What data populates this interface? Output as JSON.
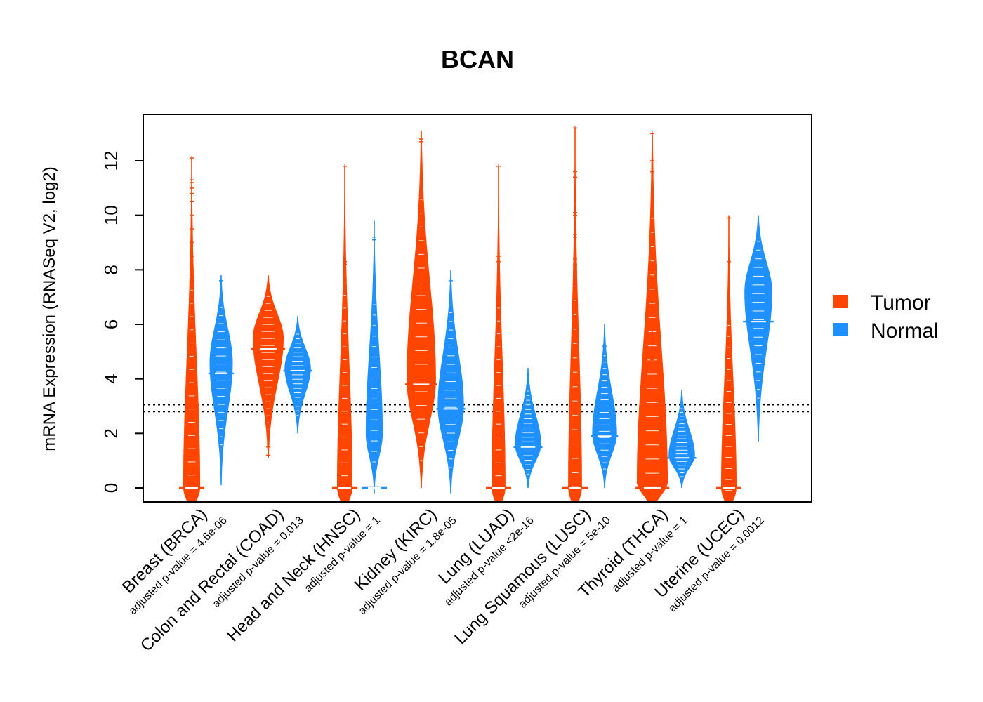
{
  "chart_data": {
    "type": "beanplot",
    "title": "BCAN",
    "ylabel": "mRNA Expression (RNASeq V2, log2)",
    "xlabel": "",
    "ylim": [
      -0.5,
      13.7
    ],
    "yticks": [
      0,
      2,
      4,
      6,
      8,
      10,
      12
    ],
    "ytick_labels": [
      "0",
      "2",
      "4",
      "6",
      "8",
      "10",
      "12"
    ],
    "reference_lines": [
      2.8,
      3.05
    ],
    "legend": {
      "position": "right",
      "entries": [
        {
          "name": "Tumor",
          "color": "#FF4500"
        },
        {
          "name": "Normal",
          "color": "#1E90FF"
        }
      ]
    },
    "series_colors": {
      "Tumor": "#FF4500",
      "Normal": "#1E90FF"
    },
    "categories": [
      {
        "label": "Breast (BRCA)",
        "pvalue_label": "adjusted p-value = 4.6e-06",
        "tumor": {
          "median": 0,
          "min": -0.5,
          "max": 12.1,
          "mode": 0,
          "width": 0.55,
          "outliers": [
            12.1,
            11.3,
            11.2,
            11.0,
            10.8,
            10.5,
            10.0,
            9.5,
            9.0,
            8.5,
            8.0,
            7.5
          ]
        },
        "normal": {
          "median": 4.2,
          "min": 0.1,
          "max": 7.8,
          "mode": 4.6,
          "width": 0.75,
          "outliers": [
            7.6
          ]
        }
      },
      {
        "label": "Colon and Rectal (COAD)",
        "pvalue_label": "adjusted p-value = 0.013",
        "tumor": {
          "median": 5.1,
          "min": 1.1,
          "max": 7.8,
          "mode": 5.5,
          "width": 1.0,
          "outliers": [
            1.2,
            1.5
          ]
        },
        "normal": {
          "median": 4.3,
          "min": 2.0,
          "max": 6.3,
          "mode": 4.4,
          "width": 0.85,
          "outliers": []
        }
      },
      {
        "label": "Head and Neck (HNSC)",
        "pvalue_label": "adjusted p-value = 1",
        "tumor": {
          "median": 0,
          "min": -0.5,
          "max": 11.8,
          "mode": 0,
          "width": 0.5,
          "outliers": [
            11.8,
            8.3,
            8.2
          ]
        },
        "normal": {
          "median": 0,
          "min": -0.2,
          "max": 9.8,
          "mode": 2.0,
          "width": 0.55,
          "outliers": [
            9.2,
            9.1
          ]
        }
      },
      {
        "label": "Kidney (KIRC)",
        "pvalue_label": "adjusted p-value = 1.8e-05",
        "tumor": {
          "median": 3.8,
          "min": 0,
          "max": 13.1,
          "mode": 4.0,
          "width": 0.95,
          "outliers": [
            12.8,
            12.7,
            10.2,
            8.8
          ]
        },
        "normal": {
          "median": 2.9,
          "min": -0.2,
          "max": 8.0,
          "mode": 3.0,
          "width": 0.85,
          "outliers": [
            7.6,
            6.3
          ]
        }
      },
      {
        "label": "Lung (LUAD)",
        "pvalue_label": "adjusted p-value <2e-16",
        "tumor": {
          "median": 0,
          "min": -0.5,
          "max": 11.8,
          "mode": 0,
          "width": 0.45,
          "outliers": [
            11.8,
            8.5,
            8.3
          ]
        },
        "normal": {
          "median": 1.5,
          "min": 0,
          "max": 4.4,
          "mode": 1.6,
          "width": 0.85,
          "outliers": []
        }
      },
      {
        "label": "Lung Squamous (LUSC)",
        "pvalue_label": "adjusted p-value = 5e-10",
        "tumor": {
          "median": 0,
          "min": -0.5,
          "max": 13.2,
          "mode": 0,
          "width": 0.45,
          "outliers": [
            13.2,
            11.6,
            11.4,
            10.1,
            10.0,
            9.3,
            9.2,
            8.4,
            8.2
          ]
        },
        "normal": {
          "median": 1.9,
          "min": 0,
          "max": 6.0,
          "mode": 2.0,
          "width": 0.8,
          "outliers": [
            5.2
          ]
        }
      },
      {
        "label": "Thyroid (THCA)",
        "pvalue_label": "adjusted p-value = 1",
        "tumor": {
          "median": 0,
          "min": -0.5,
          "max": 13.0,
          "mode": 0.2,
          "width": 1.0,
          "outliers": [
            13.0,
            12.0,
            11.6,
            9.8,
            9.0,
            7.2,
            7.0,
            6.4,
            5.7,
            5.3,
            4.7,
            4.3
          ]
        },
        "normal": {
          "median": 1.1,
          "min": 0,
          "max": 3.6,
          "mode": 1.2,
          "width": 0.85,
          "outliers": []
        }
      },
      {
        "label": "Uterine (UCEC)",
        "pvalue_label": "adjusted p-value = 0.0012",
        "tumor": {
          "median": 0,
          "min": -0.5,
          "max": 10.0,
          "mode": 0,
          "width": 0.5,
          "outliers": [
            9.9,
            8.3
          ]
        },
        "normal": {
          "median": 6.1,
          "min": 1.7,
          "max": 10.0,
          "mode": 7.2,
          "width": 0.9,
          "outliers": []
        }
      }
    ]
  }
}
